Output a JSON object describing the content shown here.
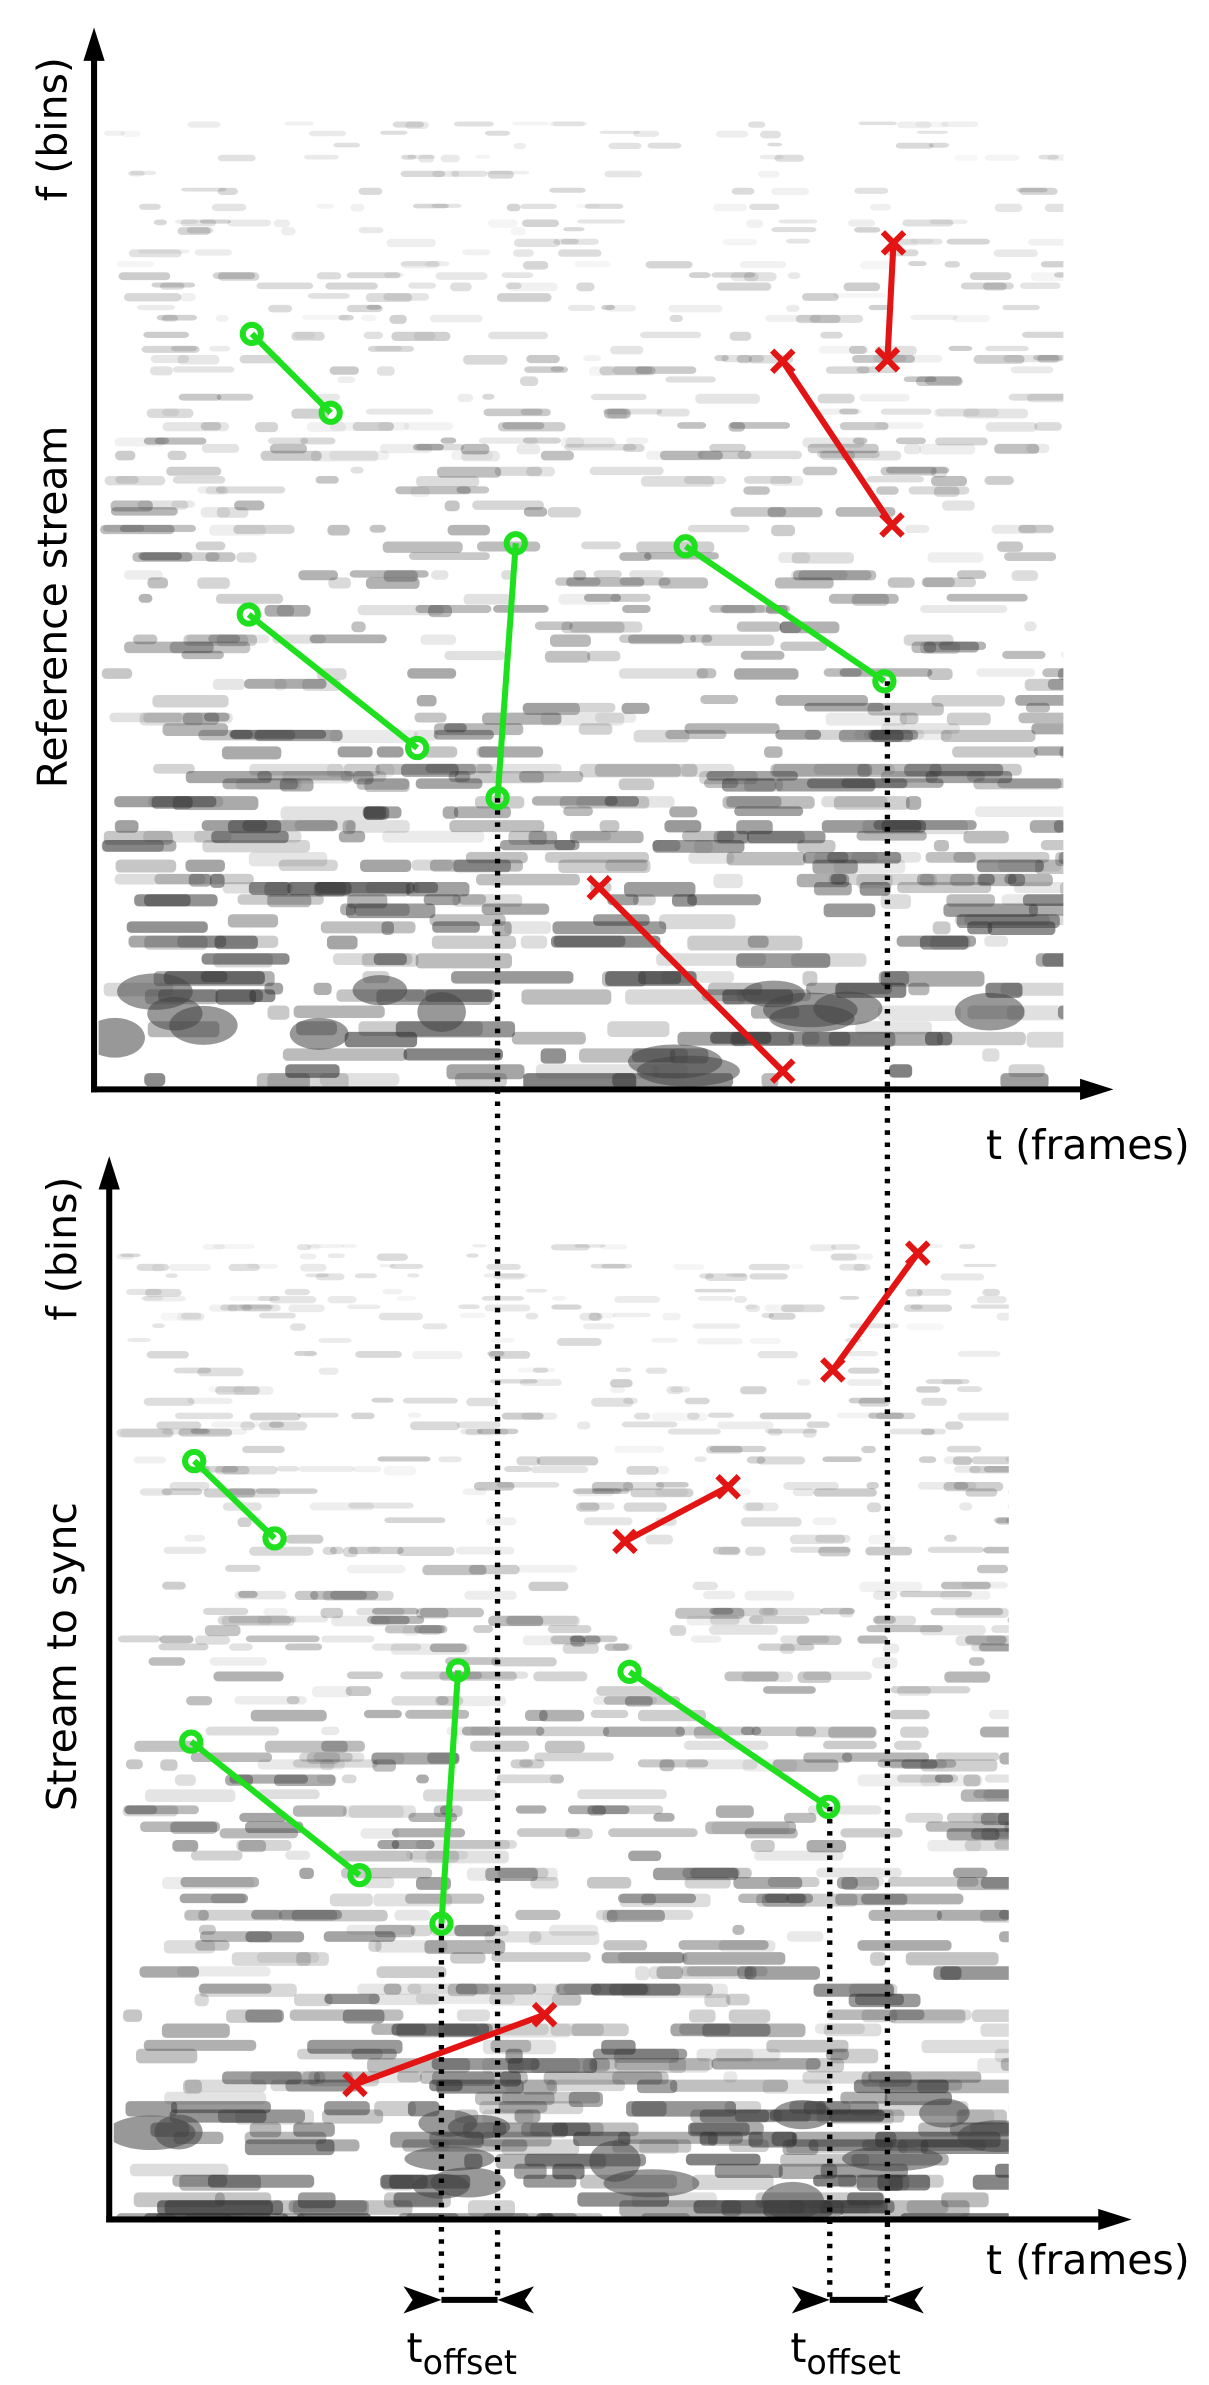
{
  "reference_panel": {
    "y_axis_label": "f (bins)",
    "stream_label": "Reference stream",
    "x_axis_label": "t (frames)"
  },
  "sync_panel": {
    "y_axis_label": "f (bins)",
    "stream_label": "Stream to sync",
    "x_axis_label": "t (frames)"
  },
  "offset_labels": [
    {
      "main": "t",
      "subscript": "offset"
    },
    {
      "main": "t",
      "subscript": "offset"
    }
  ]
}
